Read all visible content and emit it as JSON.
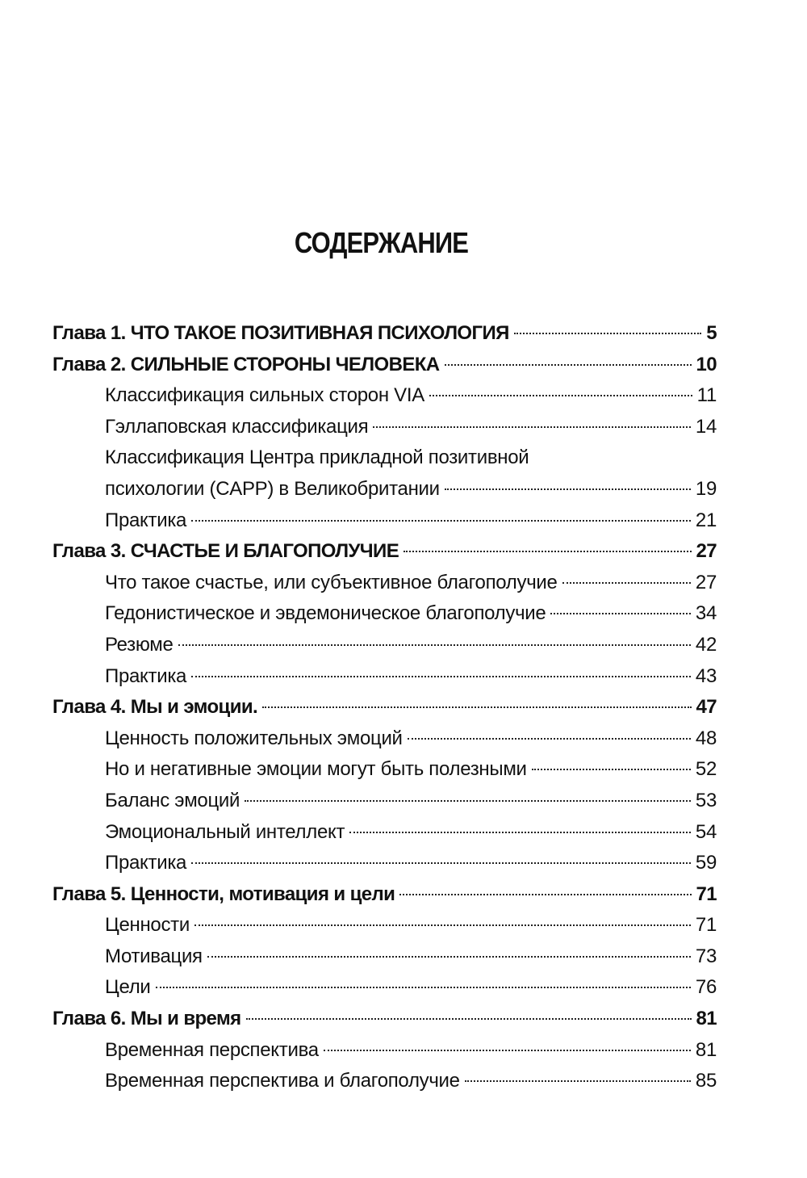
{
  "title": "СОДЕРЖАНИЕ",
  "entries": [
    {
      "level": "chapter",
      "text": "Глава 1. ЧТО ТАКОЕ ПОЗИТИВНАЯ ПСИХОЛОГИЯ",
      "page": "5"
    },
    {
      "level": "chapter",
      "text": "Глава 2. СИЛЬНЫЕ СТОРОНЫ ЧЕЛОВЕКА",
      "page": "10"
    },
    {
      "level": "section",
      "text": "Классификация сильных сторон VIA",
      "page": "11"
    },
    {
      "level": "section",
      "text": "Гэллаповская классификация",
      "page": "14"
    },
    {
      "level": "section",
      "text": "Классификация Центра прикладной позитивной",
      "page": ""
    },
    {
      "level": "section",
      "text": "психологии (CAPP) в Великобритании",
      "page": "19"
    },
    {
      "level": "section",
      "text": "Практика",
      "page": "21"
    },
    {
      "level": "chapter",
      "text": "Глава 3. СЧАСТЬЕ И БЛАГОПОЛУЧИЕ",
      "page": "27"
    },
    {
      "level": "section",
      "text": "Что такое счастье, или субъективное благополучие",
      "page": "27"
    },
    {
      "level": "section",
      "text": "Гедонистическое и эвдемоническое благополучие",
      "page": "34"
    },
    {
      "level": "section",
      "text": "Резюме",
      "page": "42"
    },
    {
      "level": "section",
      "text": "Практика",
      "page": "43"
    },
    {
      "level": "chapter",
      "text": "Глава 4. Мы и эмоции.",
      "page": "47"
    },
    {
      "level": "section",
      "text": "Ценность положительных эмоций",
      "page": "48"
    },
    {
      "level": "section",
      "text": "Но и негативные эмоции могут быть полезными",
      "page": "52"
    },
    {
      "level": "section",
      "text": "Баланс эмоций",
      "page": "53"
    },
    {
      "level": "section",
      "text": "Эмоциональный интеллект",
      "page": "54"
    },
    {
      "level": "section",
      "text": "Практика",
      "page": "59"
    },
    {
      "level": "chapter",
      "text": "Глава 5. Ценности, мотивация и цели",
      "page": "71"
    },
    {
      "level": "section",
      "text": "Ценности",
      "page": "71"
    },
    {
      "level": "section",
      "text": "Мотивация",
      "page": "73"
    },
    {
      "level": "section",
      "text": "Цели",
      "page": "76"
    },
    {
      "level": "chapter",
      "text": "Глава 6. Мы и время",
      "page": "81"
    },
    {
      "level": "section",
      "text": "Временная перспектива",
      "page": "81"
    },
    {
      "level": "section",
      "text": "Временная перспектива и благополучие",
      "page": "85"
    }
  ]
}
